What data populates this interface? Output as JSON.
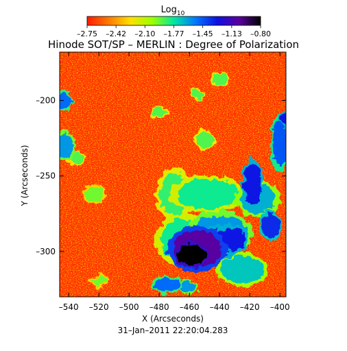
{
  "chart_data": {
    "type": "heatmap",
    "title": "Hinode SOT/SP – MERLIN : Degree of Polarization",
    "timestamp": "31–Jan–2011 22:20:04.283",
    "xlabel": "X (Arcseconds)",
    "ylabel": "Y (Arcseconds)",
    "xlim": [
      -546,
      -396
    ],
    "ylim": [
      -330,
      -168
    ],
    "xticks": [
      "–540",
      "–520",
      "–500",
      "–480",
      "–460",
      "–440",
      "–420",
      "–400"
    ],
    "xtick_values": [
      -540,
      -520,
      -500,
      -480,
      -460,
      -440,
      -420,
      -400
    ],
    "yticks": [
      "–200",
      "–250",
      "–300"
    ],
    "ytick_values": [
      -200,
      -250,
      -300
    ],
    "colorbar": {
      "label_base": "Log",
      "label_sub": "10",
      "tick_labels": [
        "–2.75",
        "–2.42",
        "–2.10",
        "–1.77",
        "–1.45",
        "–1.13",
        "–0.80"
      ],
      "range": [
        -2.75,
        -0.8
      ],
      "colors": [
        "#ff1a00",
        "#ff7a00",
        "#ffe000",
        "#9cff00",
        "#00e8a0",
        "#0078ff",
        "#1010e0",
        "#5a00a0",
        "#000000"
      ]
    },
    "regions": [
      {
        "x": -458,
        "y": -302,
        "rx": 9,
        "ry": 7,
        "level": -0.8
      },
      {
        "x": -455,
        "y": -298,
        "rx": 16,
        "ry": 12,
        "level": -1.05
      },
      {
        "x": -445,
        "y": -295,
        "rx": 14,
        "ry": 10,
        "level": -1.3
      },
      {
        "x": -432,
        "y": -292,
        "rx": 9,
        "ry": 8,
        "level": -1.3
      },
      {
        "x": -465,
        "y": -292,
        "rx": 14,
        "ry": 14,
        "level": -1.8
      },
      {
        "x": -440,
        "y": -288,
        "rx": 18,
        "ry": 12,
        "level": -1.6
      },
      {
        "x": -448,
        "y": -262,
        "rx": 20,
        "ry": 10,
        "level": -1.8
      },
      {
        "x": -470,
        "y": -262,
        "rx": 10,
        "ry": 14,
        "level": -1.85
      },
      {
        "x": -418,
        "y": -255,
        "rx": 6,
        "ry": 14,
        "level": -1.3
      },
      {
        "x": -415,
        "y": -265,
        "rx": 12,
        "ry": 10,
        "level": -1.65
      },
      {
        "x": -406,
        "y": -283,
        "rx": 6,
        "ry": 8,
        "level": -1.35
      },
      {
        "x": -425,
        "y": -312,
        "rx": 14,
        "ry": 9,
        "level": -1.7
      },
      {
        "x": -475,
        "y": -322,
        "rx": 8,
        "ry": 5,
        "level": -1.5
      },
      {
        "x": -462,
        "y": -324,
        "rx": 6,
        "ry": 4,
        "level": -1.6
      },
      {
        "x": -543,
        "y": -200,
        "rx": 4,
        "ry": 6,
        "level": -1.5
      },
      {
        "x": -543,
        "y": -230,
        "rx": 6,
        "ry": 8,
        "level": -1.6
      },
      {
        "x": -535,
        "y": -238,
        "rx": 5,
        "ry": 4,
        "level": -1.9
      },
      {
        "x": -400,
        "y": -228,
        "rx": 5,
        "ry": 16,
        "level": -1.45
      },
      {
        "x": -395,
        "y": -212,
        "rx": 4,
        "ry": 6,
        "level": -1.3
      },
      {
        "x": -480,
        "y": -208,
        "rx": 5,
        "ry": 4,
        "level": -1.9
      },
      {
        "x": -450,
        "y": -226,
        "rx": 6,
        "ry": 5,
        "level": -1.9
      },
      {
        "x": -455,
        "y": -196,
        "rx": 4,
        "ry": 3,
        "level": -1.9
      },
      {
        "x": -523,
        "y": -262,
        "rx": 6,
        "ry": 5,
        "level": -1.95
      },
      {
        "x": -440,
        "y": -186,
        "rx": 5,
        "ry": 4,
        "level": -1.9
      },
      {
        "x": -520,
        "y": -320,
        "rx": 5,
        "ry": 4,
        "level": -1.95
      }
    ]
  }
}
